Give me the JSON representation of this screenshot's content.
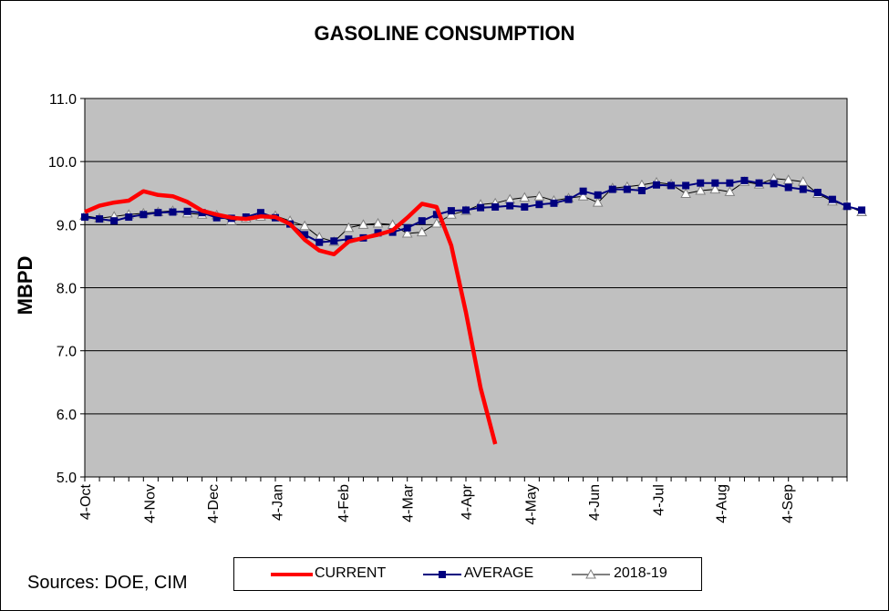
{
  "chart_data": {
    "type": "line",
    "title": "GASOLINE CONSUMPTION",
    "ylabel": "MBPD",
    "xlabel": "",
    "ylim": [
      5.0,
      11.0
    ],
    "yticks": [
      "5.0",
      "6.0",
      "7.0",
      "8.0",
      "9.0",
      "10.0",
      "11.0"
    ],
    "x_tick_labels": [
      "4-Oct",
      "4-Nov",
      "4-Dec",
      "4-Jan",
      "4-Feb",
      "4-Mar",
      "4-Apr",
      "4-May",
      "4-Jun",
      "4-Jul",
      "4-Aug",
      "4-Sep"
    ],
    "x_tick_weeks": [
      0,
      4.4,
      8.7,
      13.1,
      17.6,
      22.0,
      26.0,
      30.4,
      34.7,
      39.1,
      43.4,
      47.9
    ],
    "x_weeks_total": 52,
    "grid": true,
    "legend_position": "bottom",
    "plot_background": "#c0c0c0",
    "series": [
      {
        "name": "CURRENT",
        "color": "#ff0000",
        "marker": "none",
        "values": [
          9.2,
          9.3,
          9.35,
          9.38,
          9.53,
          9.47,
          9.45,
          9.36,
          9.22,
          9.16,
          9.11,
          9.09,
          9.13,
          9.12,
          9.01,
          8.76,
          8.59,
          8.53,
          8.73,
          8.79,
          8.84,
          8.91,
          9.11,
          9.33,
          9.28,
          8.67,
          7.61,
          6.41,
          5.52
        ]
      },
      {
        "name": "AVERAGE",
        "color": "#00007f",
        "marker": "square",
        "values": [
          9.12,
          9.09,
          9.06,
          9.12,
          9.16,
          9.19,
          9.2,
          9.21,
          9.19,
          9.11,
          9.1,
          9.12,
          9.19,
          9.11,
          9.01,
          8.84,
          8.72,
          8.74,
          8.77,
          8.79,
          8.87,
          8.88,
          8.95,
          9.06,
          9.16,
          9.22,
          9.23,
          9.27,
          9.28,
          9.3,
          9.28,
          9.32,
          9.34,
          9.4,
          9.53,
          9.47,
          9.56,
          9.56,
          9.54,
          9.63,
          9.62,
          9.62,
          9.66,
          9.66,
          9.66,
          9.7,
          9.66,
          9.65,
          9.59,
          9.56,
          9.51,
          9.4,
          9.29,
          9.23
        ]
      },
      {
        "name": "2018-19",
        "color": "#000000",
        "marker": "triangle",
        "values": [
          9.14,
          9.1,
          9.13,
          9.16,
          9.18,
          9.2,
          9.22,
          9.18,
          9.16,
          9.15,
          9.06,
          9.1,
          9.13,
          9.14,
          9.06,
          8.98,
          8.8,
          8.73,
          8.95,
          9.0,
          9.02,
          9.0,
          8.86,
          8.88,
          9.02,
          9.16,
          9.22,
          9.32,
          9.34,
          9.4,
          9.43,
          9.45,
          9.38,
          9.42,
          9.45,
          9.35,
          9.58,
          9.6,
          9.63,
          9.67,
          9.64,
          9.49,
          9.54,
          9.56,
          9.52,
          9.68,
          9.64,
          9.73,
          9.71,
          9.68,
          9.49,
          9.37,
          9.3,
          9.2
        ]
      }
    ]
  },
  "footer": {
    "sources": "Sources:  DOE, CIM"
  }
}
